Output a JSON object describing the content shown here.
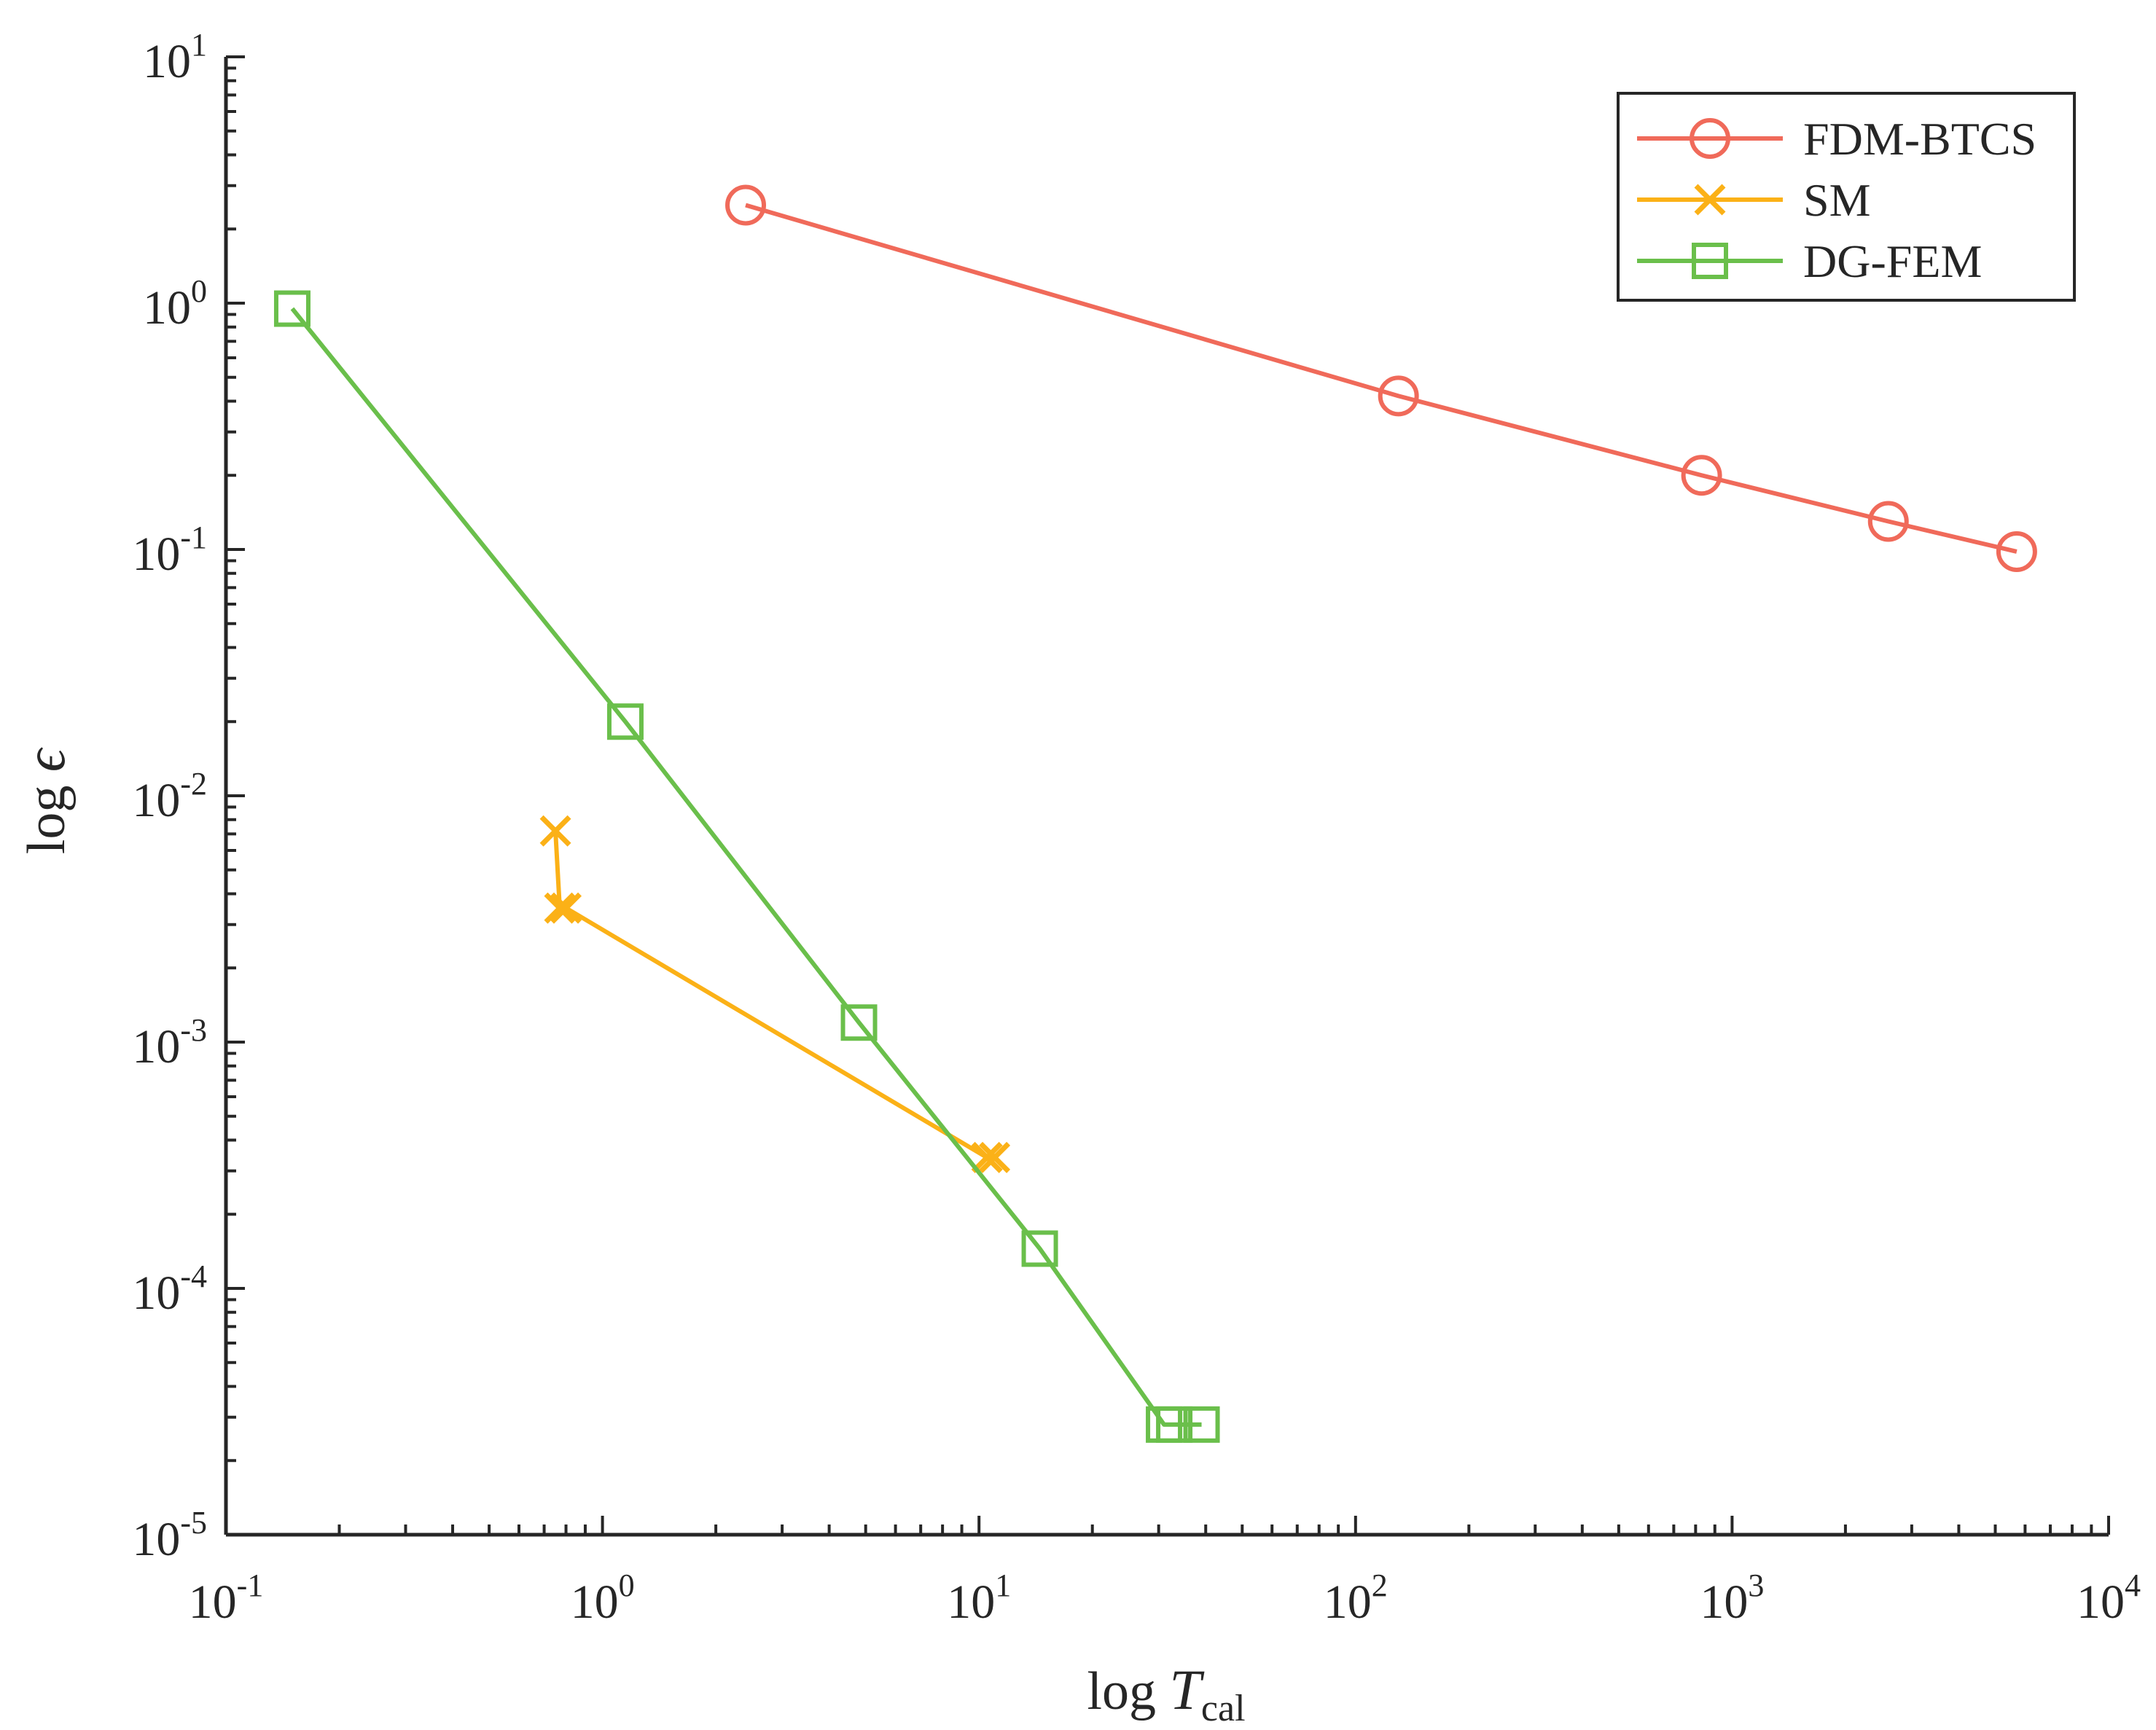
{
  "chart_data": {
    "type": "line",
    "x_scale": "log",
    "y_scale": "log",
    "xlim": [
      0.1,
      10000
    ],
    "ylim": [
      1e-05,
      10
    ],
    "xlabel": {
      "prefix": "log",
      "var": "T",
      "sub": "cal"
    },
    "ylabel": {
      "prefix": "log",
      "var": "ϵ"
    },
    "x_ticks": [
      {
        "base": "10",
        "exp": "-1"
      },
      {
        "base": "10",
        "exp": "0"
      },
      {
        "base": "10",
        "exp": "1"
      },
      {
        "base": "10",
        "exp": "2"
      },
      {
        "base": "10",
        "exp": "3"
      },
      {
        "base": "10",
        "exp": "4"
      }
    ],
    "y_ticks": [
      {
        "base": "10",
        "exp": "-5"
      },
      {
        "base": "10",
        "exp": "-4"
      },
      {
        "base": "10",
        "exp": "-3"
      },
      {
        "base": "10",
        "exp": "-2"
      },
      {
        "base": "10",
        "exp": "-1"
      },
      {
        "base": "10",
        "exp": "0"
      },
      {
        "base": "10",
        "exp": "1"
      }
    ],
    "grid": false,
    "legend_position": "top-right",
    "series": [
      {
        "name": "FDM-BTCS",
        "color": "#f06a5a",
        "marker": "circle",
        "x": [
          2.4,
          130,
          830,
          2600,
          5700
        ],
        "y": [
          2.5,
          0.42,
          0.2,
          0.13,
          0.098
        ]
      },
      {
        "name": "SM",
        "color": "#fbb117",
        "marker": "x",
        "x": [
          0.75,
          0.77,
          0.8,
          10.5,
          11
        ],
        "y": [
          0.0072,
          0.0035,
          0.0035,
          0.00034,
          0.00034
        ]
      },
      {
        "name": "DG-FEM",
        "color": "#6abf4b",
        "marker": "square",
        "x": [
          0.15,
          1.15,
          4.8,
          14.5,
          31,
          33,
          39
        ],
        "y": [
          0.95,
          0.02,
          0.0012,
          0.000145,
          2.8e-05,
          2.8e-05,
          2.8e-05
        ]
      }
    ]
  }
}
